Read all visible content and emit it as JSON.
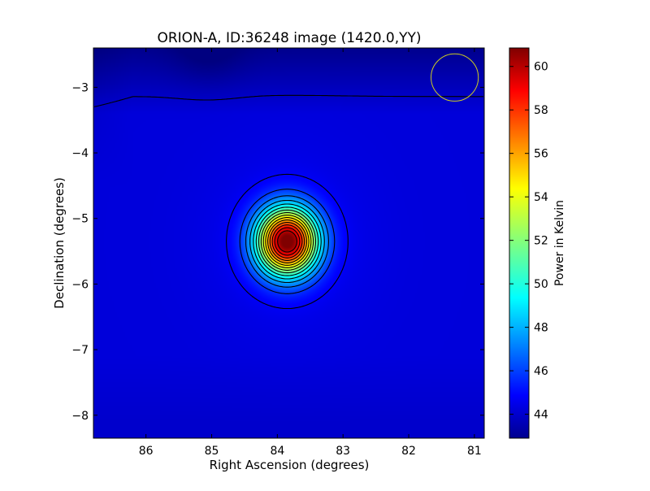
{
  "chart_data": {
    "type": "heatmap",
    "title": "ORION-A, ID:36248 image (1420.0,YY)",
    "xlabel": "Right Ascension (degrees)",
    "ylabel": "Declination (degrees)",
    "colorbar_label": "Power in Kelvin",
    "xlim": [
      86.8,
      80.85
    ],
    "ylim": [
      -8.35,
      -2.4
    ],
    "x_ticks": [
      86,
      85,
      84,
      83,
      82,
      81
    ],
    "y_ticks": [
      -3,
      -4,
      -5,
      -6,
      -7,
      -8
    ],
    "colorbar_range": [
      42.9,
      60.85
    ],
    "colorbar_ticks": [
      44,
      46,
      48,
      50,
      52,
      54,
      56,
      58,
      60
    ],
    "colormap": "jet",
    "source": {
      "ra": 83.85,
      "dec": -5.35,
      "peak_kelvin": 60.85,
      "background_kelvin": 44.5
    },
    "beam_marker": {
      "ra": 81.3,
      "dec": -2.85,
      "radius_deg": 0.36,
      "color": "#cccc22"
    },
    "contour_color": "#000000",
    "grid": false
  }
}
